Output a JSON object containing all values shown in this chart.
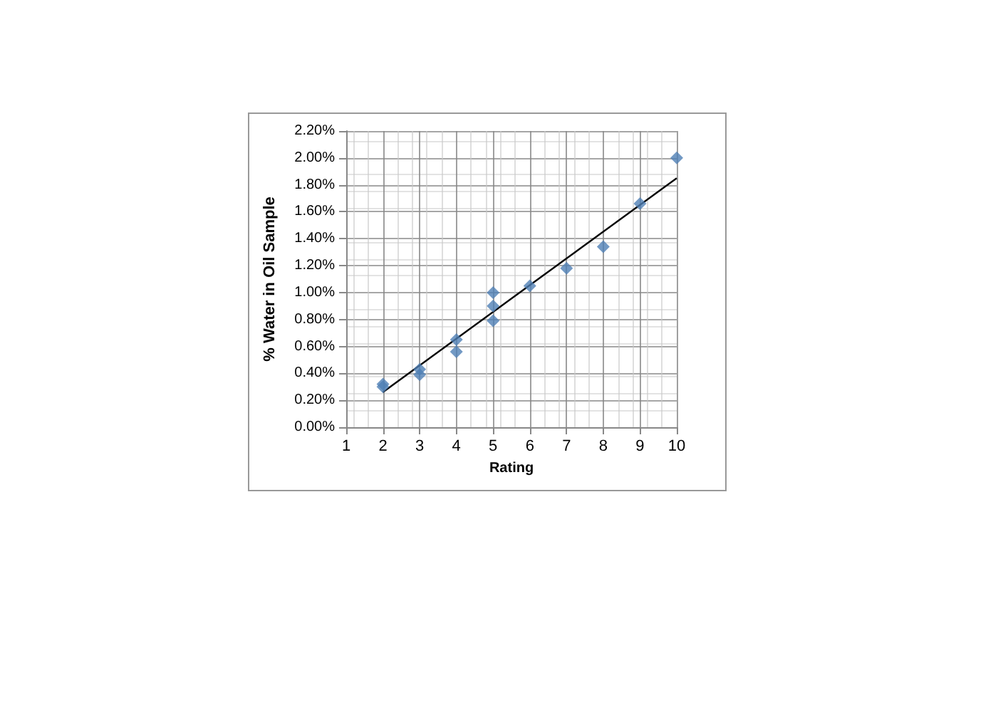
{
  "chart_data": {
    "type": "scatter",
    "xlabel": "Rating",
    "ylabel": "% Water in Oil Sample",
    "xlim": [
      1,
      10
    ],
    "xticks": [
      1,
      2,
      3,
      4,
      5,
      6,
      7,
      8,
      9,
      10
    ],
    "ylim": [
      0,
      2.2
    ],
    "yticks": [
      {
        "value": 0,
        "label": "0.00%"
      },
      {
        "value": 0.2,
        "label": "0.20%"
      },
      {
        "value": 0.4,
        "label": "0.40%"
      },
      {
        "value": 0.6,
        "label": "0.60%"
      },
      {
        "value": 0.8,
        "label": "0.80%"
      },
      {
        "value": 1.0,
        "label": "1.00%"
      },
      {
        "value": 1.2,
        "label": "1.20%"
      },
      {
        "value": 1.4,
        "label": "1.40%"
      },
      {
        "value": 1.6,
        "label": "1.60%"
      },
      {
        "value": 1.8,
        "label": "1.80%"
      },
      {
        "value": 2.0,
        "label": "2.00%"
      },
      {
        "value": 2.2,
        "label": "2.20%"
      }
    ],
    "grid": true,
    "marker": "diamond",
    "series": [
      {
        "type": "scatter",
        "color": "#4f7fb5",
        "x": [
          2,
          2,
          3,
          3,
          4,
          4,
          5,
          5,
          5,
          6,
          7,
          8,
          9,
          10
        ],
        "values": [
          0.32,
          0.3,
          0.43,
          0.39,
          0.65,
          0.56,
          1.0,
          0.9,
          0.79,
          1.05,
          1.18,
          1.34,
          1.66,
          2.0
        ]
      },
      {
        "type": "line",
        "color": "#000000",
        "marker": "none",
        "line_style": "solid",
        "x": [
          2,
          10
        ],
        "values": [
          0.26,
          1.85
        ]
      }
    ]
  }
}
